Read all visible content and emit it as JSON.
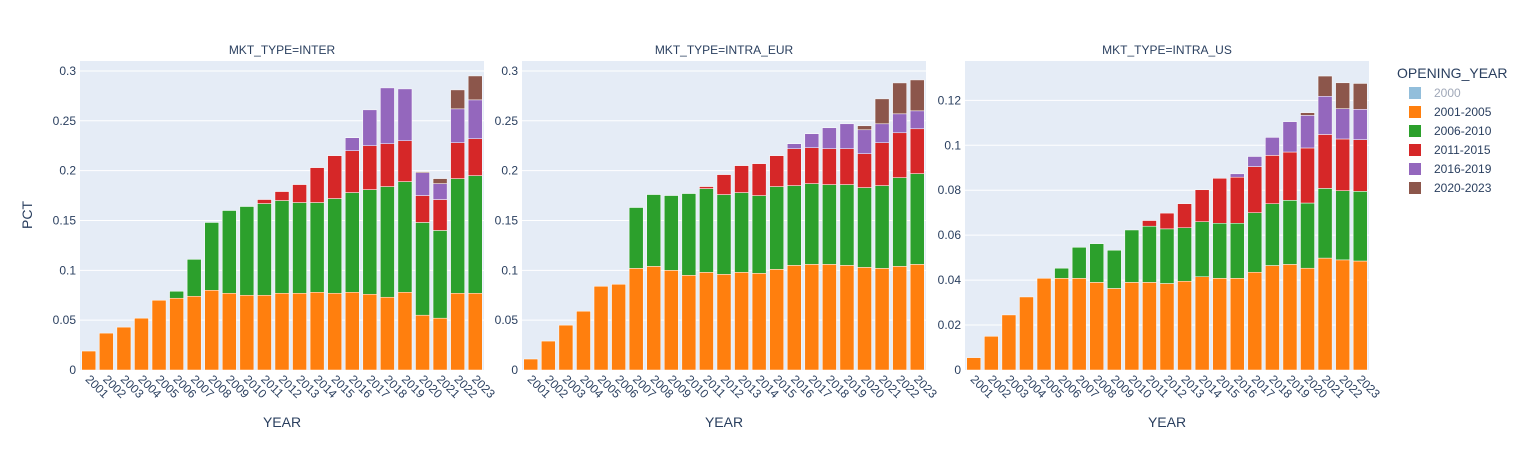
{
  "chart_data": {
    "type": "bar",
    "barmode": "stack",
    "y_axis_title": "PCT",
    "x_axis_title": "YEAR",
    "legend": {
      "title": "OPENING_YEAR",
      "placement": "right",
      "entries": [
        {
          "name": "2000",
          "color": "#7fb3d5",
          "muted": true
        },
        {
          "name": "2001-2005",
          "color": "#ff7f0e",
          "muted": false
        },
        {
          "name": "2006-2010",
          "color": "#2ca02c",
          "muted": false
        },
        {
          "name": "2011-2015",
          "color": "#d62728",
          "muted": false
        },
        {
          "name": "2016-2019",
          "color": "#9467bd",
          "muted": false
        },
        {
          "name": "2020-2023",
          "color": "#8c564b",
          "muted": false
        }
      ]
    },
    "categories": [
      "2001",
      "2002",
      "2003",
      "2004",
      "2005",
      "2006",
      "2007",
      "2008",
      "2009",
      "2010",
      "2011",
      "2012",
      "2013",
      "2014",
      "2015",
      "2016",
      "2017",
      "2018",
      "2019",
      "2020",
      "2021",
      "2022",
      "2023"
    ],
    "panels": [
      {
        "title": "MKT_TYPE=INTER",
        "ylim": [
          0,
          0.31
        ],
        "yticks": [
          0,
          0.05,
          0.1,
          0.15,
          0.2,
          0.25,
          0.3
        ],
        "ytick_labels": [
          "0",
          "0.05",
          "0.1",
          "0.15",
          "0.2",
          "0.25",
          "0.3"
        ],
        "grid": true,
        "series": [
          {
            "name": "2001-2005",
            "values": [
              0.019,
              0.037,
              0.043,
              0.052,
              0.07,
              0.072,
              0.074,
              0.08,
              0.077,
              0.075,
              0.075,
              0.077,
              0.077,
              0.078,
              0.077,
              0.078,
              0.076,
              0.073,
              0.078,
              0.055,
              0.052,
              0.077,
              0.077
            ]
          },
          {
            "name": "2006-2010",
            "values": [
              0,
              0,
              0,
              0,
              0,
              0.007,
              0.037,
              0.068,
              0.083,
              0.089,
              0.092,
              0.093,
              0.091,
              0.09,
              0.095,
              0.1,
              0.105,
              0.111,
              0.111,
              0.093,
              0.088,
              0.115,
              0.118
            ]
          },
          {
            "name": "2011-2015",
            "values": [
              0,
              0,
              0,
              0,
              0,
              0,
              0,
              0,
              0,
              0,
              0.004,
              0.009,
              0.018,
              0.035,
              0.043,
              0.042,
              0.044,
              0.043,
              0.041,
              0.027,
              0.031,
              0.036,
              0.037
            ]
          },
          {
            "name": "2016-2019",
            "values": [
              0,
              0,
              0,
              0,
              0,
              0,
              0,
              0,
              0,
              0,
              0,
              0,
              0,
              0,
              0,
              0.013,
              0.036,
              0.056,
              0.052,
              0.023,
              0.016,
              0.034,
              0.039
            ]
          },
          {
            "name": "2020-2023",
            "values": [
              0,
              0,
              0,
              0,
              0,
              0,
              0,
              0,
              0,
              0,
              0,
              0,
              0,
              0,
              0,
              0,
              0,
              0,
              0,
              0.001,
              0.005,
              0.019,
              0.024
            ]
          }
        ]
      },
      {
        "title": "MKT_TYPE=INTRA_EUR",
        "ylim": [
          0,
          0.31
        ],
        "yticks": [
          0,
          0.05,
          0.1,
          0.15,
          0.2,
          0.25,
          0.3
        ],
        "ytick_labels": [
          "0",
          "0.05",
          "0.1",
          "0.15",
          "0.2",
          "0.25",
          "0.3"
        ],
        "grid": true,
        "series": [
          {
            "name": "2001-2005",
            "values": [
              0.011,
              0.029,
              0.045,
              0.059,
              0.084,
              0.086,
              0.102,
              0.104,
              0.1,
              0.095,
              0.098,
              0.096,
              0.098,
              0.097,
              0.101,
              0.105,
              0.106,
              0.106,
              0.105,
              0.103,
              0.102,
              0.104,
              0.106
            ]
          },
          {
            "name": "2006-2010",
            "values": [
              0,
              0,
              0,
              0,
              0,
              0,
              0.061,
              0.072,
              0.075,
              0.082,
              0.084,
              0.08,
              0.08,
              0.078,
              0.083,
              0.08,
              0.081,
              0.08,
              0.081,
              0.08,
              0.083,
              0.089,
              0.091
            ]
          },
          {
            "name": "2011-2015",
            "values": [
              0,
              0,
              0,
              0,
              0,
              0,
              0,
              0,
              0,
              0,
              0.002,
              0.02,
              0.027,
              0.032,
              0.031,
              0.037,
              0.036,
              0.036,
              0.036,
              0.034,
              0.043,
              0.045,
              0.045
            ]
          },
          {
            "name": "2016-2019",
            "values": [
              0,
              0,
              0,
              0,
              0,
              0,
              0,
              0,
              0,
              0,
              0,
              0,
              0,
              0,
              0,
              0.005,
              0.014,
              0.021,
              0.025,
              0.024,
              0.019,
              0.019,
              0.018
            ]
          },
          {
            "name": "2020-2023",
            "values": [
              0,
              0,
              0,
              0,
              0,
              0,
              0,
              0,
              0,
              0,
              0,
              0,
              0,
              0,
              0,
              0,
              0,
              0,
              0,
              0.004,
              0.025,
              0.031,
              0.031
            ]
          }
        ]
      },
      {
        "title": "MKT_TYPE=INTRA_US",
        "ylim": [
          0,
          0.1375
        ],
        "yticks": [
          0,
          0.02,
          0.04,
          0.06,
          0.08,
          0.1,
          0.12
        ],
        "ytick_labels": [
          "0",
          "0.02",
          "0.04",
          "0.06",
          "0.08",
          "0.1",
          "0.12"
        ],
        "grid": true,
        "series": [
          {
            "name": "2001-2005",
            "values": [
              0.0055,
              0.015,
              0.0245,
              0.0325,
              0.0408,
              0.0408,
              0.0408,
              0.039,
              0.0363,
              0.039,
              0.039,
              0.0385,
              0.0395,
              0.0415,
              0.0408,
              0.0408,
              0.0435,
              0.0465,
              0.047,
              0.0453,
              0.0498,
              0.049,
              0.0485
            ]
          },
          {
            "name": "2006-2010",
            "values": [
              0,
              0,
              0,
              0,
              0,
              0.0045,
              0.0138,
              0.0172,
              0.017,
              0.0233,
              0.025,
              0.0243,
              0.0238,
              0.0245,
              0.0245,
              0.0245,
              0.0265,
              0.0275,
              0.0285,
              0.029,
              0.031,
              0.0308,
              0.031
            ]
          },
          {
            "name": "2011-2015",
            "values": [
              0,
              0,
              0,
              0,
              0,
              0,
              0,
              0,
              0,
              0,
              0.0025,
              0.007,
              0.0107,
              0.0142,
              0.02,
              0.0205,
              0.0205,
              0.0215,
              0.0215,
              0.0245,
              0.024,
              0.023,
              0.023
            ]
          },
          {
            "name": "2016-2019",
            "values": [
              0,
              0,
              0,
              0,
              0,
              0,
              0,
              0,
              0,
              0,
              0,
              0,
              0,
              0,
              0,
              0.0015,
              0.0045,
              0.008,
              0.0135,
              0.0145,
              0.017,
              0.0135,
              0.0135
            ]
          },
          {
            "name": "2020-2023",
            "values": [
              0,
              0,
              0,
              0,
              0,
              0,
              0,
              0,
              0,
              0,
              0,
              0,
              0,
              0,
              0,
              0,
              0,
              0,
              0,
              0.0012,
              0.009,
              0.0115,
              0.0115
            ]
          }
        ]
      }
    ]
  }
}
